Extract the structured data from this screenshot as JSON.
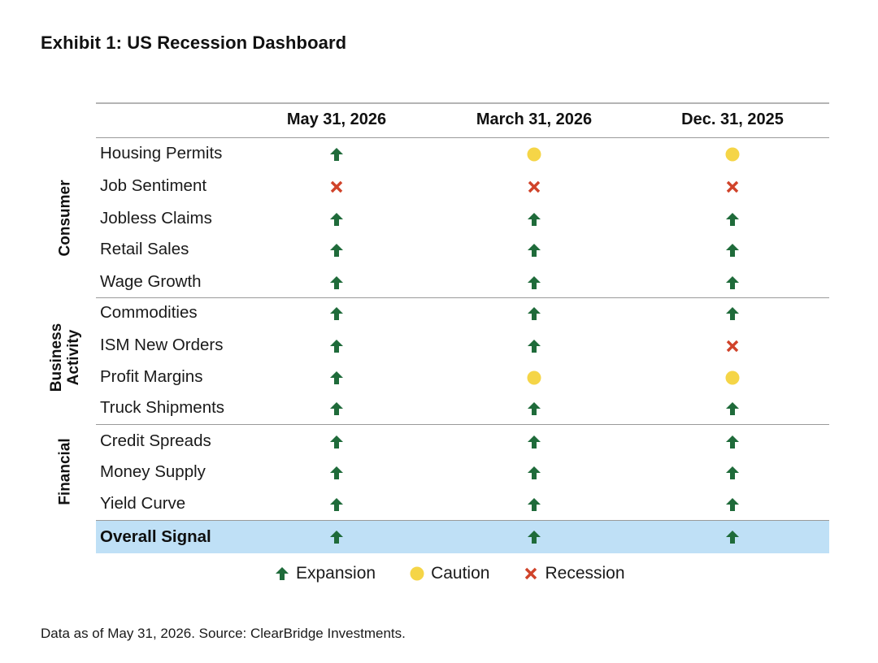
{
  "title": "Exhibit 1: US Recession Dashboard",
  "colors": {
    "expansion": "#1f6b3a",
    "caution": "#f5d547",
    "recession": "#d0432a",
    "overall_row": "#bfe0f6"
  },
  "chart_data": {
    "type": "table",
    "columns": [
      "May 31, 2026",
      "March 31, 2026",
      "Dec. 31, 2025"
    ],
    "groups": [
      {
        "label": "Consumer",
        "rows": [
          {
            "label": "Housing Permits",
            "signals": [
              "expansion",
              "caution",
              "caution"
            ]
          },
          {
            "label": "Job Sentiment",
            "signals": [
              "recession",
              "recession",
              "recession"
            ]
          },
          {
            "label": "Jobless Claims",
            "signals": [
              "expansion",
              "expansion",
              "expansion"
            ]
          },
          {
            "label": "Retail Sales",
            "signals": [
              "expansion",
              "expansion",
              "expansion"
            ]
          },
          {
            "label": "Wage Growth",
            "signals": [
              "expansion",
              "expansion",
              "expansion"
            ]
          }
        ]
      },
      {
        "label": "Business Activity",
        "rows": [
          {
            "label": "Commodities",
            "signals": [
              "expansion",
              "expansion",
              "expansion"
            ]
          },
          {
            "label": "ISM New Orders",
            "signals": [
              "expansion",
              "expansion",
              "recession"
            ]
          },
          {
            "label": "Profit Margins",
            "signals": [
              "expansion",
              "caution",
              "caution"
            ]
          },
          {
            "label": "Truck Shipments",
            "signals": [
              "expansion",
              "expansion",
              "expansion"
            ]
          }
        ]
      },
      {
        "label": "Financial",
        "rows": [
          {
            "label": "Credit Spreads",
            "signals": [
              "expansion",
              "expansion",
              "expansion"
            ]
          },
          {
            "label": "Money Supply",
            "signals": [
              "expansion",
              "expansion",
              "expansion"
            ]
          },
          {
            "label": "Yield Curve",
            "signals": [
              "expansion",
              "expansion",
              "expansion"
            ]
          }
        ]
      }
    ],
    "overall": {
      "label": "Overall Signal",
      "signals": [
        "expansion",
        "expansion",
        "expansion"
      ]
    },
    "legend": [
      {
        "key": "expansion",
        "label": "Expansion"
      },
      {
        "key": "caution",
        "label": "Caution"
      },
      {
        "key": "recession",
        "label": "Recession"
      }
    ]
  },
  "footnote": "Data as of May 31, 2026. Source: ClearBridge Investments."
}
